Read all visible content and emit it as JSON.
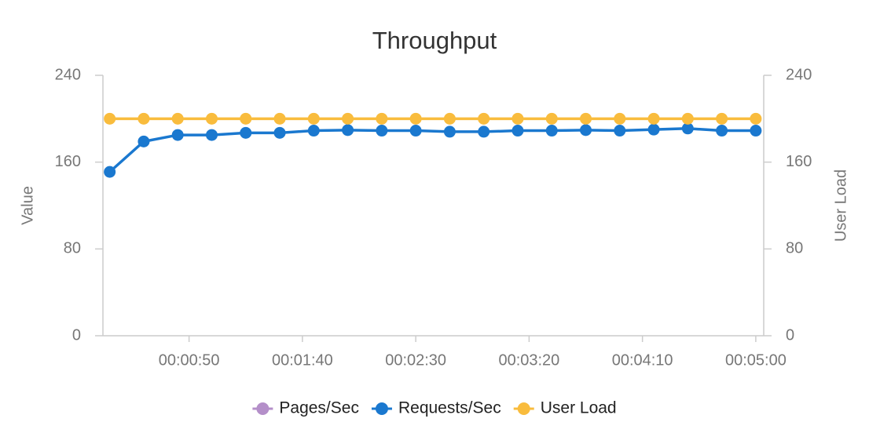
{
  "chart_data": {
    "type": "line",
    "title": "Throughput",
    "y_label": "Value",
    "y2_label": "User Load",
    "x": [
      15,
      30,
      45,
      60,
      75,
      90,
      105,
      120,
      135,
      150,
      165,
      180,
      195,
      210,
      225,
      240,
      255,
      270,
      285,
      300
    ],
    "xlim": [
      12,
      303.5
    ],
    "xticks": [
      {
        "value": 50,
        "label": "00:00:50"
      },
      {
        "value": 100,
        "label": "00:01:40"
      },
      {
        "value": 150,
        "label": "00:02:30"
      },
      {
        "value": 200,
        "label": "00:03:20"
      },
      {
        "value": 250,
        "label": "00:04:10"
      },
      {
        "value": 300,
        "label": "00:05:00"
      }
    ],
    "ylim": [
      0,
      240
    ],
    "yticks": [
      0,
      80,
      160,
      240
    ],
    "y2lim": [
      0,
      240
    ],
    "y2ticks": [
      0,
      80,
      160,
      240
    ],
    "series": [
      {
        "name": "Pages/Sec",
        "color": "#b48fc9",
        "values": [
          null,
          null,
          null,
          null,
          null,
          null,
          null,
          null,
          null,
          null,
          null,
          null,
          null,
          null,
          null,
          null,
          null,
          null,
          null,
          null
        ]
      },
      {
        "name": "Requests/Sec",
        "color": "#1a78cf",
        "values": [
          151,
          179,
          185,
          185,
          187,
          187,
          189,
          189.5,
          189,
          189,
          188,
          188,
          189,
          189,
          189.5,
          189,
          190,
          191,
          189,
          189
        ]
      },
      {
        "name": "User Load",
        "color": "#f9bc3d",
        "axis": "y2",
        "values": [
          200,
          200,
          200,
          200,
          200,
          200,
          200,
          200,
          200,
          200,
          200,
          200,
          200,
          200,
          200,
          200,
          200,
          200,
          200,
          200
        ]
      }
    ]
  }
}
